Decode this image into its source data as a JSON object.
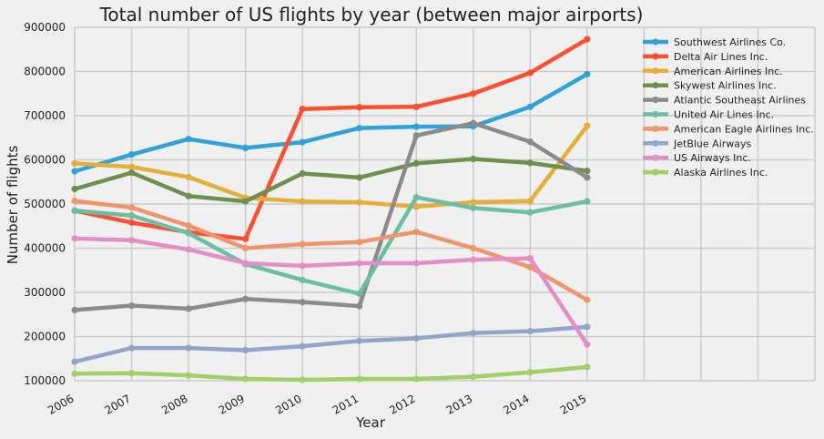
{
  "chart_data": {
    "type": "line",
    "title": "Total number of US flights by year (between major airports)",
    "xlabel": "Year",
    "ylabel": "Number of flights",
    "x": [
      2006,
      2007,
      2008,
      2009,
      2010,
      2011,
      2012,
      2013,
      2014,
      2015
    ],
    "xlim": [
      2006,
      2019
    ],
    "ylim": [
      100000,
      900000
    ],
    "yticks": [
      "100000",
      "200000",
      "300000",
      "400000",
      "500000",
      "600000",
      "700000",
      "800000",
      "900000"
    ],
    "xticks": [
      "2006",
      "2007",
      "2008",
      "2009",
      "2010",
      "2011",
      "2012",
      "2013",
      "2014",
      "2015"
    ],
    "grid": true,
    "legend_position": "outside-top-right",
    "series": [
      {
        "name": "Southwest Airlines Co.",
        "color": "#30a2da",
        "values": [
          574000,
          612000,
          647000,
          627000,
          640000,
          672000,
          675000,
          676000,
          720000,
          794000
        ]
      },
      {
        "name": "Delta Air Lines Inc.",
        "color": "#fc4f30",
        "values": [
          485000,
          458000,
          436000,
          421000,
          715000,
          719000,
          720000,
          750000,
          797000,
          873000
        ]
      },
      {
        "name": "American Airlines Inc.",
        "color": "#e5ae38",
        "values": [
          592000,
          584000,
          561000,
          514000,
          506000,
          504000,
          494000,
          504000,
          507000,
          677000
        ]
      },
      {
        "name": "Skywest Airlines Inc.",
        "color": "#6d904f",
        "values": [
          534000,
          571000,
          518000,
          506000,
          569000,
          560000,
          592000,
          602000,
          593000,
          575000
        ]
      },
      {
        "name": "Atlantic Southeast Airlines",
        "color": "#8b8b8b",
        "values": [
          260000,
          270000,
          263000,
          285000,
          278000,
          269000,
          655000,
          683000,
          641000,
          560000
        ]
      },
      {
        "name": "United Air Lines Inc.",
        "color": "#6bbea3",
        "values": [
          485000,
          474000,
          434000,
          364000,
          328000,
          297000,
          515000,
          491000,
          481000,
          506000
        ]
      },
      {
        "name": "American Eagle Airlines Inc.",
        "color": "#f0946c",
        "values": [
          507000,
          492000,
          451000,
          400000,
          409000,
          414000,
          437000,
          400000,
          357000,
          283000
        ]
      },
      {
        "name": "JetBlue Airways",
        "color": "#92a4cc",
        "values": [
          143000,
          174000,
          174000,
          169000,
          178000,
          190000,
          196000,
          208000,
          212000,
          222000
        ]
      },
      {
        "name": "US Airways Inc.",
        "color": "#e38fc6",
        "values": [
          422000,
          418000,
          397000,
          366000,
          360000,
          366000,
          366000,
          374000,
          377000,
          182000
        ]
      },
      {
        "name": "Alaska Airlines Inc.",
        "color": "#a1d066",
        "values": [
          116000,
          117000,
          112000,
          104000,
          102000,
          104000,
          104000,
          109000,
          119000,
          131000
        ]
      }
    ]
  }
}
